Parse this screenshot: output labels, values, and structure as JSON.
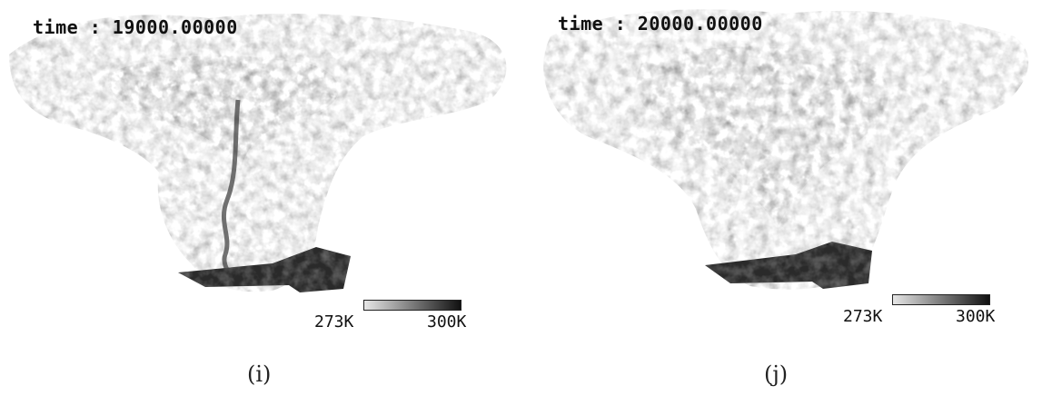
{
  "panels": [
    {
      "id": "i",
      "time_label": "time : 19000.00000",
      "colorbar": {
        "min_label": "273K",
        "max_label": "300K",
        "gradient_colors": [
          "#e6e6e6",
          "#111111"
        ]
      },
      "caption": "(i)"
    },
    {
      "id": "j",
      "time_label": "time : 20000.00000",
      "colorbar": {
        "min_label": "273K",
        "max_label": "300K",
        "gradient_colors": [
          "#e6e6e6",
          "#111111"
        ]
      },
      "caption": "(j)"
    }
  ],
  "colors": {
    "plume_light": "#d7d7d7",
    "plume_mid": "#a9a9a9",
    "source_dark": "#2a2a2a"
  }
}
